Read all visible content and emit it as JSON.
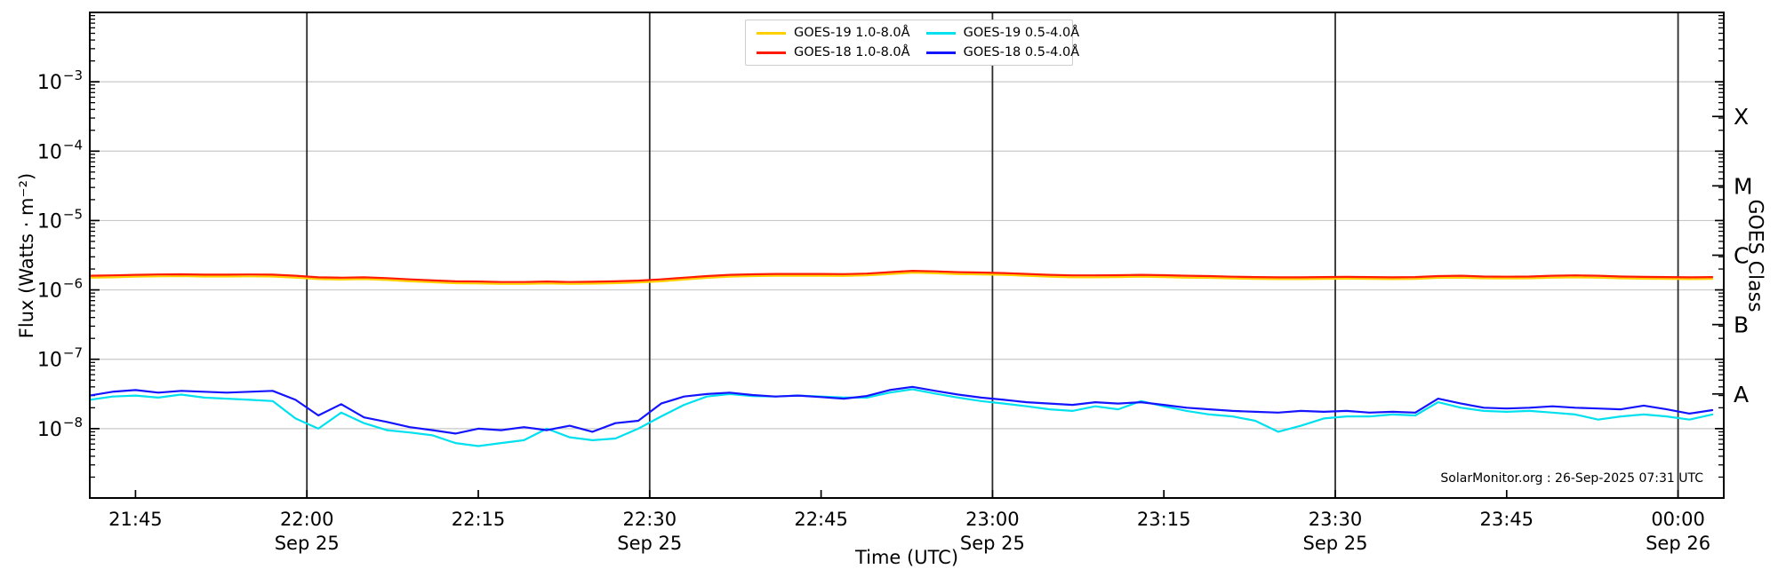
{
  "axes": {
    "ylabel": "Flux (Watts · m⁻²)",
    "xlabel": "Time (UTC)",
    "right_label": "GOES Class"
  },
  "watermark": "SolarMonitor.org : 26-Sep-2025 07:31 UTC",
  "legend": {
    "items": [
      {
        "label": "GOES-19 1.0-8.0Å",
        "color": "#FFD000"
      },
      {
        "label": "GOES-18 1.0-8.0Å",
        "color": "#FF1A00"
      },
      {
        "label": "GOES-19 0.5-4.0Å",
        "color": "#00E0EE"
      },
      {
        "label": "GOES-18 0.5-4.0Å",
        "color": "#1414FF"
      }
    ]
  },
  "chart_data": {
    "type": "line",
    "y_scale": "log",
    "ylim": [
      1e-09,
      0.01
    ],
    "x_time_origin": "21:41 UTC Sep 25",
    "xlim_minutes": [
      0,
      143
    ],
    "grid": {
      "horizontal_decades": [
        -3,
        -4,
        -5,
        -6,
        -7,
        -8
      ],
      "vertical_at_halfhours": true
    },
    "yticks": [
      {
        "exp": -3,
        "base": "10",
        "sup": "−3"
      },
      {
        "exp": -4,
        "base": "10",
        "sup": "−4"
      },
      {
        "exp": -5,
        "base": "10",
        "sup": "−5"
      },
      {
        "exp": -6,
        "base": "10",
        "sup": "−6"
      },
      {
        "exp": -7,
        "base": "10",
        "sup": "−7"
      },
      {
        "exp": -8,
        "base": "10",
        "sup": "−8"
      }
    ],
    "xticks": [
      {
        "m": 4,
        "label": "21:45"
      },
      {
        "m": 19,
        "label": "22:00",
        "sub": "Sep 25",
        "grid": true
      },
      {
        "m": 34,
        "label": "22:15"
      },
      {
        "m": 49,
        "label": "22:30",
        "sub": "Sep 25",
        "grid": true
      },
      {
        "m": 64,
        "label": "22:45"
      },
      {
        "m": 79,
        "label": "23:00",
        "sub": "Sep 25",
        "grid": true
      },
      {
        "m": 94,
        "label": "23:15"
      },
      {
        "m": 109,
        "label": "23:30",
        "sub": "Sep 25",
        "grid": true
      },
      {
        "m": 124,
        "label": "23:45"
      },
      {
        "m": 139,
        "label": "00:00",
        "sub": "Sep 26",
        "grid": true
      }
    ],
    "goes_classes": [
      {
        "label": "X",
        "exp": -3.5
      },
      {
        "label": "M",
        "exp": -4.5
      },
      {
        "label": "C",
        "exp": -5.5
      },
      {
        "label": "B",
        "exp": -6.5
      },
      {
        "label": "A",
        "exp": -7.5
      }
    ],
    "x": [
      0,
      2,
      4,
      6,
      8,
      10,
      12,
      14,
      16,
      18,
      20,
      22,
      24,
      26,
      28,
      30,
      32,
      34,
      36,
      38,
      40,
      42,
      44,
      46,
      48,
      50,
      52,
      54,
      56,
      58,
      60,
      62,
      64,
      66,
      68,
      70,
      72,
      74,
      76,
      78,
      80,
      82,
      84,
      86,
      88,
      90,
      92,
      94,
      96,
      98,
      100,
      102,
      104,
      106,
      108,
      110,
      112,
      114,
      116,
      118,
      120,
      122,
      124,
      126,
      128,
      130,
      132,
      134,
      136,
      138,
      140,
      142
    ],
    "series": [
      {
        "name": "GOES-19 1.0-8.0Å",
        "color": "#FFD000",
        "scale": 1e-06,
        "values": [
          1.5,
          1.52,
          1.55,
          1.57,
          1.58,
          1.56,
          1.56,
          1.57,
          1.56,
          1.5,
          1.43,
          1.41,
          1.43,
          1.39,
          1.33,
          1.29,
          1.25,
          1.24,
          1.22,
          1.22,
          1.24,
          1.22,
          1.23,
          1.25,
          1.28,
          1.33,
          1.41,
          1.49,
          1.55,
          1.58,
          1.6,
          1.6,
          1.6,
          1.59,
          1.62,
          1.69,
          1.77,
          1.74,
          1.69,
          1.67,
          1.65,
          1.6,
          1.55,
          1.52,
          1.52,
          1.53,
          1.55,
          1.53,
          1.5,
          1.49,
          1.46,
          1.44,
          1.43,
          1.43,
          1.44,
          1.45,
          1.44,
          1.43,
          1.44,
          1.49,
          1.5,
          1.47,
          1.46,
          1.47,
          1.5,
          1.52,
          1.5,
          1.47,
          1.45,
          1.44,
          1.43,
          1.44
        ]
      },
      {
        "name": "GOES-18 1.0-8.0Å",
        "color": "#FF1A00",
        "scale": 1e-06,
        "values": [
          1.6,
          1.62,
          1.65,
          1.67,
          1.68,
          1.66,
          1.66,
          1.67,
          1.66,
          1.6,
          1.52,
          1.5,
          1.52,
          1.48,
          1.42,
          1.37,
          1.33,
          1.32,
          1.3,
          1.3,
          1.32,
          1.3,
          1.31,
          1.33,
          1.36,
          1.42,
          1.5,
          1.58,
          1.65,
          1.68,
          1.7,
          1.7,
          1.7,
          1.69,
          1.72,
          1.8,
          1.88,
          1.85,
          1.8,
          1.78,
          1.75,
          1.7,
          1.65,
          1.62,
          1.62,
          1.63,
          1.65,
          1.63,
          1.6,
          1.58,
          1.55,
          1.53,
          1.52,
          1.52,
          1.53,
          1.54,
          1.53,
          1.52,
          1.53,
          1.58,
          1.6,
          1.56,
          1.55,
          1.56,
          1.6,
          1.62,
          1.6,
          1.56,
          1.54,
          1.53,
          1.52,
          1.53
        ]
      },
      {
        "name": "GOES-19 0.5-4.0Å",
        "color": "#00E0EE",
        "scale": 1e-08,
        "values": [
          2.6,
          2.9,
          3.0,
          2.8,
          3.1,
          2.8,
          2.7,
          2.6,
          2.5,
          1.4,
          1.0,
          1.7,
          1.2,
          0.95,
          0.88,
          0.8,
          0.62,
          0.56,
          0.62,
          0.68,
          1.0,
          0.75,
          0.68,
          0.72,
          1.0,
          1.5,
          2.2,
          2.9,
          3.15,
          2.95,
          2.9,
          3.0,
          2.9,
          2.8,
          2.8,
          3.3,
          3.7,
          3.2,
          2.8,
          2.5,
          2.3,
          2.1,
          1.9,
          1.8,
          2.1,
          1.9,
          2.5,
          2.1,
          1.8,
          1.6,
          1.5,
          1.3,
          0.9,
          1.1,
          1.4,
          1.5,
          1.5,
          1.6,
          1.55,
          2.4,
          2.0,
          1.8,
          1.75,
          1.8,
          1.7,
          1.6,
          1.35,
          1.5,
          1.6,
          1.5,
          1.35,
          1.6
        ]
      },
      {
        "name": "GOES-18 0.5-4.0Å",
        "color": "#1414FF",
        "scale": 1e-08,
        "values": [
          3.0,
          3.4,
          3.6,
          3.3,
          3.5,
          3.4,
          3.3,
          3.4,
          3.5,
          2.6,
          1.55,
          2.25,
          1.45,
          1.25,
          1.05,
          0.95,
          0.85,
          1.0,
          0.95,
          1.05,
          0.95,
          1.1,
          0.9,
          1.2,
          1.3,
          2.3,
          2.9,
          3.15,
          3.3,
          3.05,
          2.9,
          3.0,
          2.85,
          2.7,
          2.95,
          3.6,
          4.0,
          3.5,
          3.1,
          2.8,
          2.6,
          2.4,
          2.3,
          2.2,
          2.4,
          2.3,
          2.4,
          2.2,
          2.0,
          1.9,
          1.8,
          1.75,
          1.7,
          1.8,
          1.75,
          1.8,
          1.7,
          1.75,
          1.7,
          2.7,
          2.3,
          2.0,
          1.95,
          2.0,
          2.1,
          2.0,
          1.95,
          1.9,
          2.15,
          1.9,
          1.65,
          1.85
        ]
      }
    ]
  }
}
